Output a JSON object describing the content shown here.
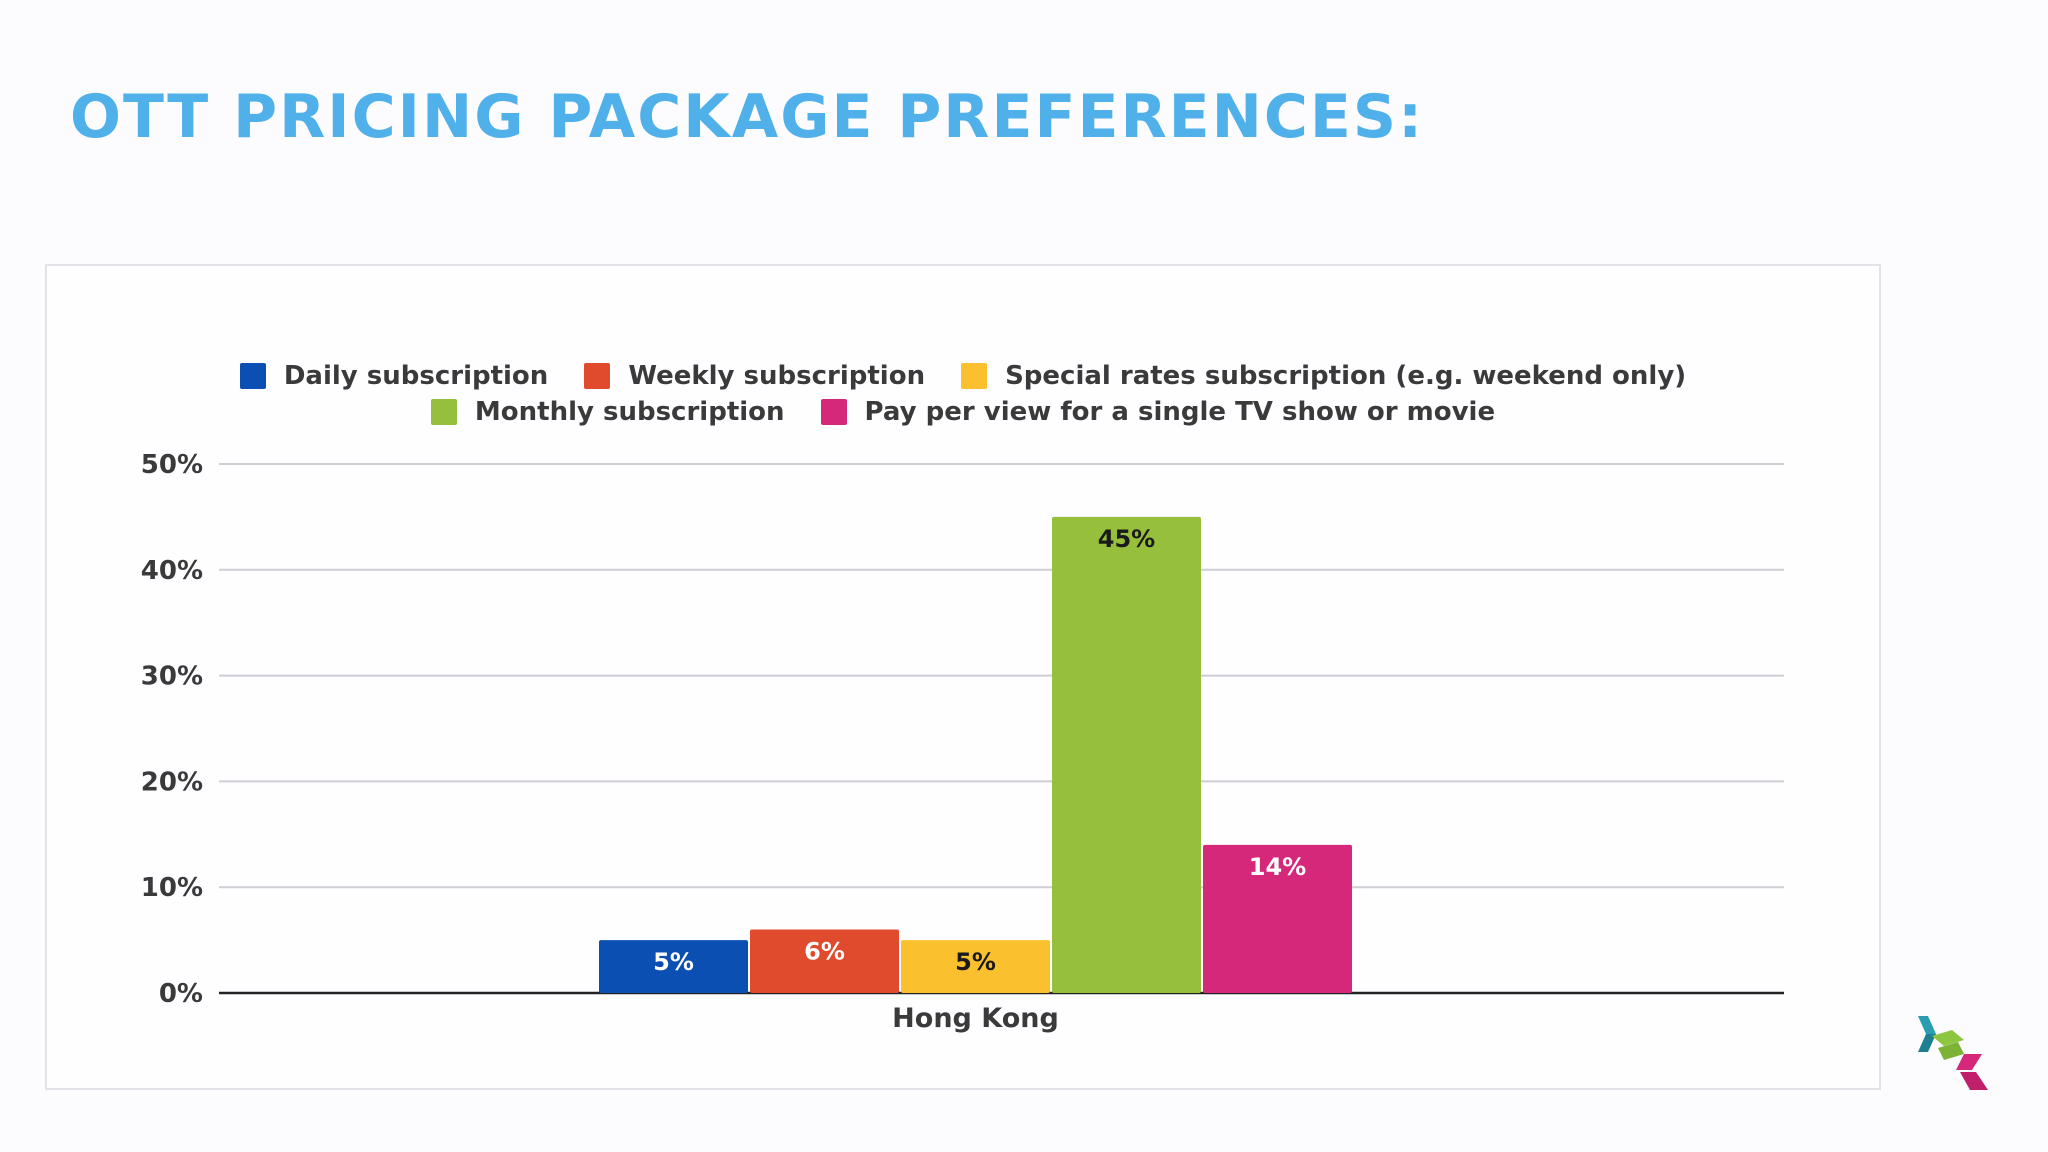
{
  "slide": {
    "title": "OTT PRICING PACKAGE PREFERENCES:"
  },
  "colors": {
    "title": "#4fb0ea",
    "gridline": "#cfcdd6",
    "axis": "#222222",
    "text": "#3a3a3a"
  },
  "chart_data": {
    "type": "bar",
    "title": "",
    "xlabel": "",
    "ylabel": "",
    "categories": [
      "Hong Kong"
    ],
    "ylim": [
      0,
      50
    ],
    "yticks": [
      "0%",
      "10%",
      "20%",
      "30%",
      "40%",
      "50%"
    ],
    "grid": true,
    "legend_position": "top",
    "series": [
      {
        "name": "Daily subscription",
        "values": [
          5
        ],
        "label": "5%",
        "color": "#0b4fb3",
        "label_color": "#ffffff"
      },
      {
        "name": "Weekly subscription",
        "values": [
          6
        ],
        "label": "6%",
        "color": "#e14b2d",
        "label_color": "#ffffff"
      },
      {
        "name": "Special rates subscription (e.g. weekend only)",
        "values": [
          5
        ],
        "label": "5%",
        "color": "#fbc02d",
        "label_color": "#1a1a1a"
      },
      {
        "name": "Monthly subscription",
        "values": [
          45
        ],
        "label": "45%",
        "color": "#96c03b",
        "label_color": "#1a1a1a"
      },
      {
        "name": "Pay per view for a single TV show or movie",
        "values": [
          14
        ],
        "label": "14%",
        "color": "#d5287a",
        "label_color": "#ffffff"
      }
    ]
  },
  "logo": {
    "icon": "company-logo-icon",
    "colors": [
      "#2a9db0",
      "#8dc63f",
      "#d5287a"
    ]
  }
}
